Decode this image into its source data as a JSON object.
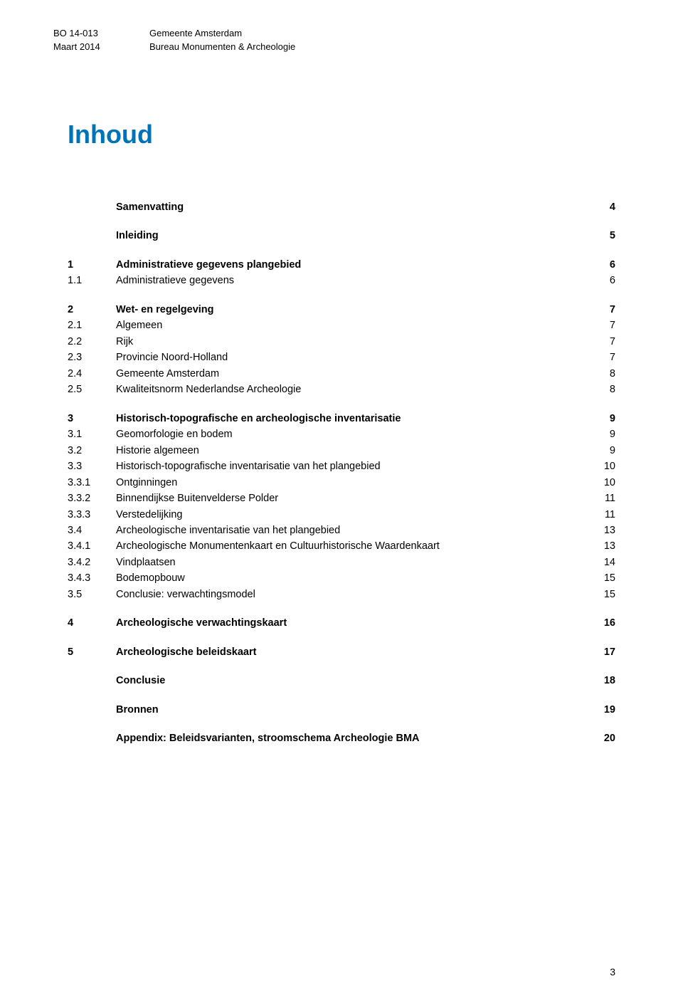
{
  "header": {
    "doc_ref": "BO 14-013",
    "doc_date": "Maart 2014",
    "org_line1": "Gemeente Amsterdam",
    "org_line2": "Bureau Monumenten & Archeologie"
  },
  "title": "Inhoud",
  "colors": {
    "title_color": "#0072b8",
    "text_color": "#000000",
    "background": "#ffffff"
  },
  "typography": {
    "title_fontsize": 36,
    "body_fontsize": 14.5,
    "header_fontsize": 13
  },
  "toc": {
    "groups": [
      {
        "rows": [
          {
            "num": "",
            "label": "Samenvatting",
            "page": "4",
            "bold": true
          }
        ]
      },
      {
        "rows": [
          {
            "num": "",
            "label": "Inleiding",
            "page": "5",
            "bold": true
          }
        ]
      },
      {
        "rows": [
          {
            "num": "1",
            "label": "Administratieve gegevens plangebied",
            "page": "6",
            "bold": true
          },
          {
            "num": "1.1",
            "label": "Administratieve gegevens",
            "page": "6",
            "bold": false
          }
        ]
      },
      {
        "rows": [
          {
            "num": "2",
            "label": "Wet- en regelgeving",
            "page": "7",
            "bold": true
          },
          {
            "num": "2.1",
            "label": "Algemeen",
            "page": "7",
            "bold": false
          },
          {
            "num": "2.2",
            "label": "Rijk",
            "page": "7",
            "bold": false
          },
          {
            "num": "2.3",
            "label": "Provincie Noord-Holland",
            "page": "7",
            "bold": false
          },
          {
            "num": "2.4",
            "label": "Gemeente Amsterdam",
            "page": "8",
            "bold": false
          },
          {
            "num": "2.5",
            "label": "Kwaliteitsnorm Nederlandse Archeologie",
            "page": "8",
            "bold": false
          }
        ]
      },
      {
        "rows": [
          {
            "num": "3",
            "label": "Historisch-topografische en archeologische inventarisatie",
            "page": "9",
            "bold": true
          },
          {
            "num": "3.1",
            "label": "Geomorfologie en bodem",
            "page": "9",
            "bold": false
          },
          {
            "num": "3.2",
            "label": "Historie algemeen",
            "page": "9",
            "bold": false
          },
          {
            "num": "3.3",
            "label": "Historisch-topografische inventarisatie van het plangebied",
            "page": "10",
            "bold": false
          },
          {
            "num": "3.3.1",
            "label": "Ontginningen",
            "page": "10",
            "bold": false
          },
          {
            "num": "3.3.2",
            "label": "Binnendijkse Buitenvelderse Polder",
            "page": "11",
            "bold": false
          },
          {
            "num": "3.3.3",
            "label": "Verstedelijking",
            "page": "11",
            "bold": false
          },
          {
            "num": "3.4",
            "label": "Archeologische inventarisatie van het plangebied",
            "page": "13",
            "bold": false
          },
          {
            "num": "3.4.1",
            "label": "Archeologische Monumentenkaart en Cultuurhistorische Waardenkaart",
            "page": "13",
            "bold": false
          },
          {
            "num": "3.4.2",
            "label": "Vindplaatsen",
            "page": "14",
            "bold": false
          },
          {
            "num": "3.4.3",
            "label": "Bodemopbouw",
            "page": "15",
            "bold": false
          },
          {
            "num": "3.5",
            "label": "Conclusie: verwachtingsmodel",
            "page": "15",
            "bold": false
          }
        ]
      },
      {
        "rows": [
          {
            "num": "4",
            "label": "Archeologische verwachtingskaart",
            "page": "16",
            "bold": true
          }
        ]
      },
      {
        "rows": [
          {
            "num": "5",
            "label": "Archeologische beleidskaart",
            "page": "17",
            "bold": true
          }
        ]
      },
      {
        "rows": [
          {
            "num": "",
            "label": "Conclusie",
            "page": "18",
            "bold": true
          }
        ]
      },
      {
        "rows": [
          {
            "num": "",
            "label": "Bronnen",
            "page": "19",
            "bold": true
          }
        ]
      },
      {
        "rows": [
          {
            "num": "",
            "label": "Appendix: Beleidsvarianten, stroomschema Archeologie BMA",
            "page": "20",
            "bold": true
          }
        ]
      }
    ]
  },
  "page_number": "3"
}
